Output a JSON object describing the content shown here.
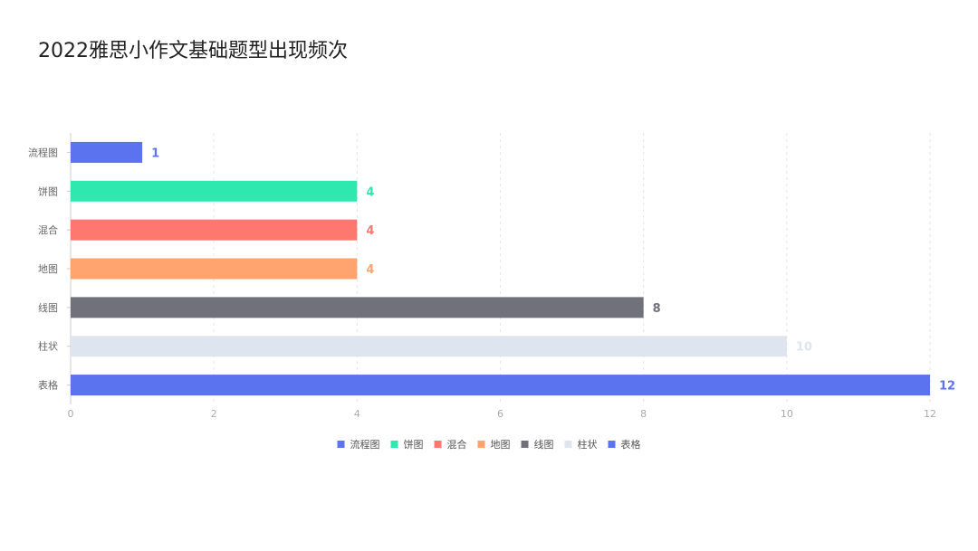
{
  "chart_data": {
    "type": "bar",
    "orientation": "horizontal",
    "title": "2022雅思小作文基础题型出现频次",
    "categories": [
      "流程图",
      "饼图",
      "混合",
      "地图",
      "线图",
      "柱状",
      "表格"
    ],
    "values": [
      1,
      4,
      4,
      4,
      8,
      10,
      12
    ],
    "colors": [
      "#5b73ee",
      "#2fe8b0",
      "#ff7870",
      "#ffa46f",
      "#71717b",
      "#dfe5ee",
      "#5b73ee"
    ],
    "xlim": [
      0,
      12
    ],
    "xticks": [
      0,
      2,
      4,
      6,
      8,
      10,
      12
    ],
    "grid": true,
    "legend": {
      "position": "bottom",
      "entries": [
        "流程图",
        "饼图",
        "混合",
        "地图",
        "线图",
        "柱状",
        "表格"
      ]
    }
  }
}
